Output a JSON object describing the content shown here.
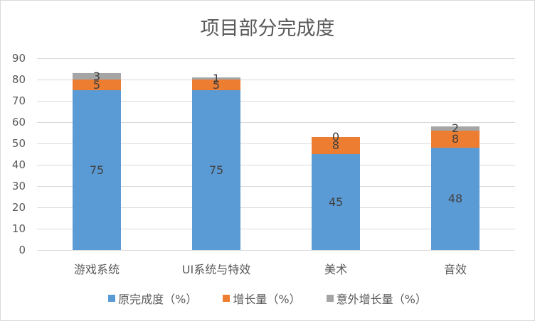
{
  "chart_data": {
    "type": "bar",
    "stacked": true,
    "title": "项目部分完成度",
    "xlabel": "",
    "ylabel": "",
    "ylim": [
      0,
      90
    ],
    "yticks": [
      0,
      10,
      20,
      30,
      40,
      50,
      60,
      70,
      80,
      90
    ],
    "grid": true,
    "legend_position": "bottom",
    "categories": [
      "游戏系统",
      "UI系统与特效",
      "美术",
      "音效"
    ],
    "series": [
      {
        "name": "原完成度（%）",
        "color": "#5b9bd5",
        "values": [
          75,
          75,
          45,
          48
        ]
      },
      {
        "name": "增长量（%）",
        "color": "#ed7d31",
        "values": [
          5,
          5,
          8,
          8
        ]
      },
      {
        "name": "意外增长量（%）",
        "color": "#a5a5a5",
        "values": [
          3,
          1,
          0,
          2
        ]
      }
    ]
  }
}
